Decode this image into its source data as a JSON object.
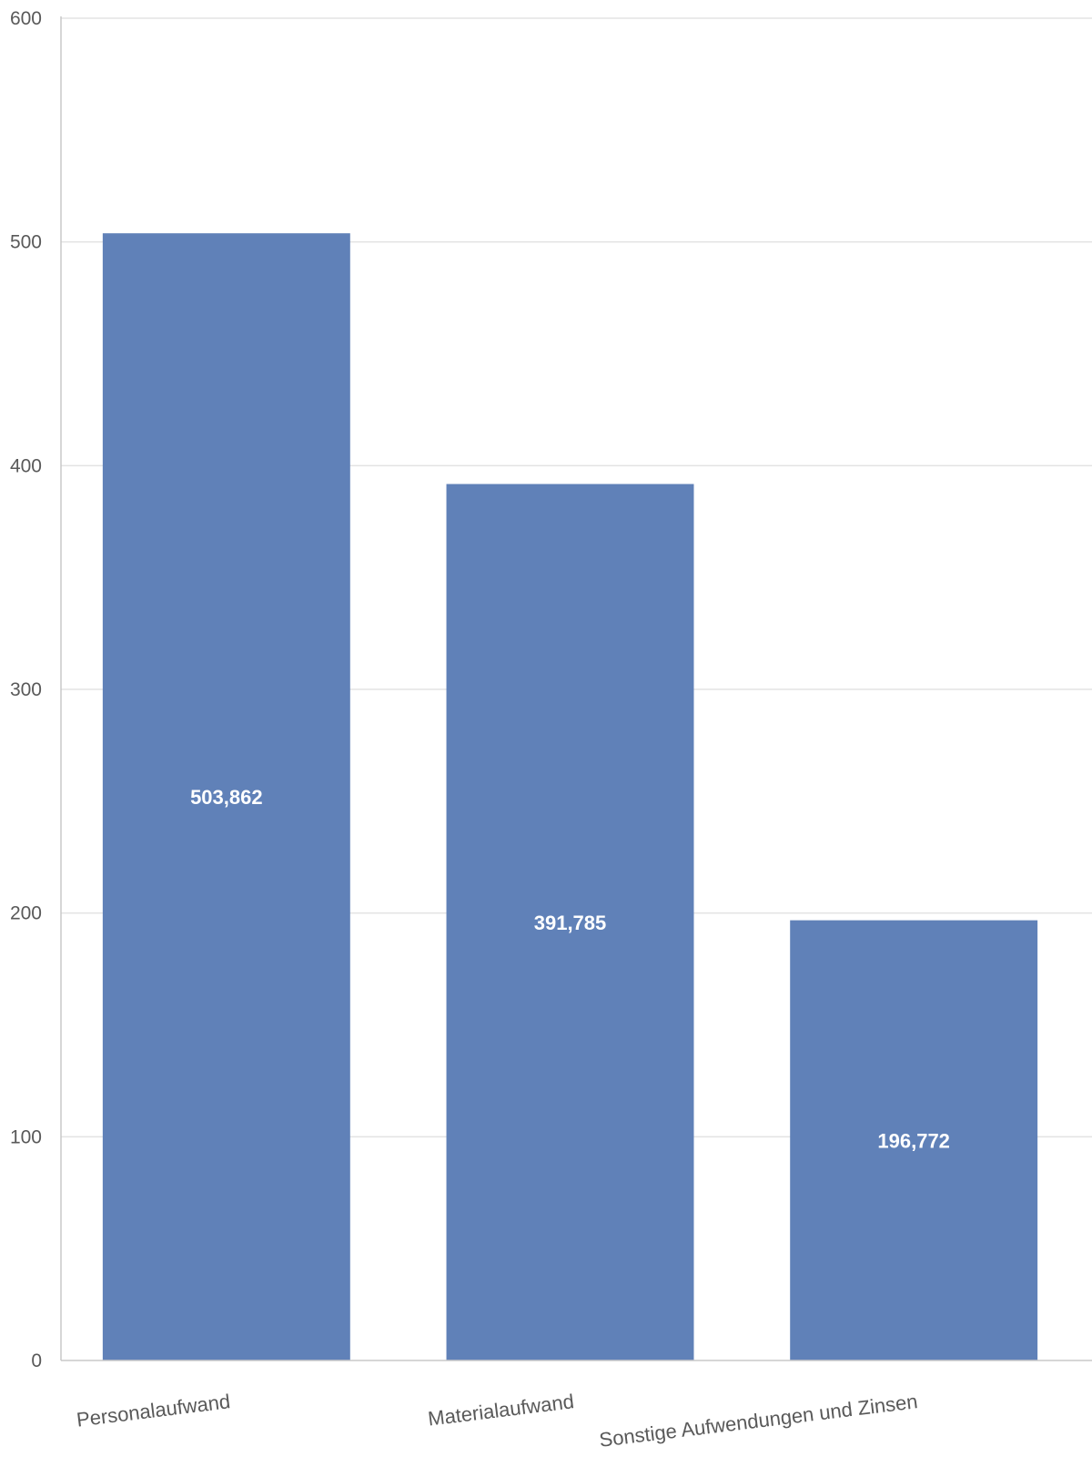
{
  "chart_data": {
    "type": "bar",
    "categories": [
      "Personalaufwand",
      "Materialaufwand",
      "Sonstige Aufwendungen und Zinsen"
    ],
    "values": [
      503.862,
      391.785,
      196.772
    ],
    "data_labels": [
      "503,862",
      "391,785",
      "196,772"
    ],
    "ylim": [
      0,
      600
    ],
    "yticks": [
      0,
      100,
      200,
      300,
      400,
      500,
      600
    ],
    "title": "",
    "xlabel": "",
    "ylabel": "",
    "grid": true,
    "legend": "none",
    "bar_color": "#6081b8"
  }
}
